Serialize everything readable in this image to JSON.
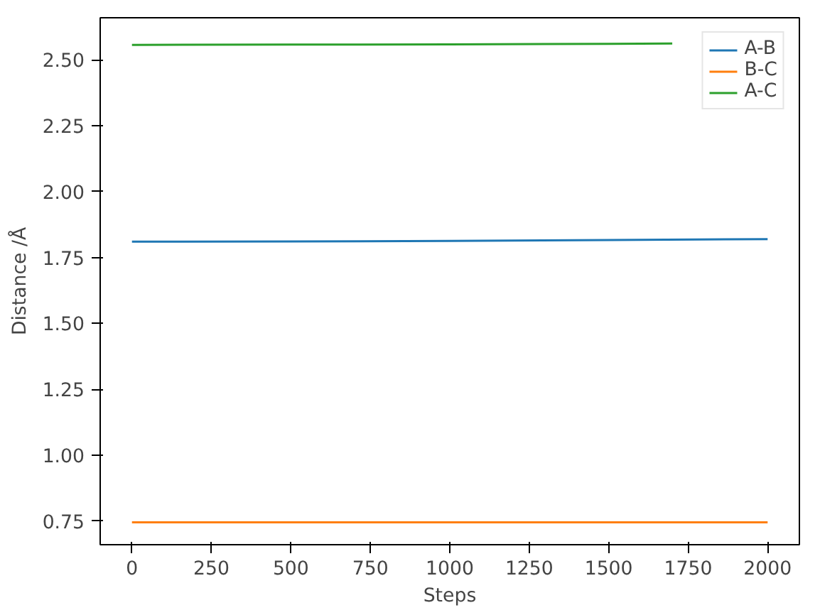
{
  "chart_data": {
    "type": "line",
    "xlabel": "Steps",
    "ylabel": "Distance /Å",
    "x": [
      0,
      500,
      1000,
      1500,
      2000
    ],
    "series": [
      {
        "name": "A-B",
        "color": "#1f77b4",
        "values": [
          1.81,
          1.811,
          1.813,
          1.816,
          1.82
        ]
      },
      {
        "name": "B-C",
        "color": "#ff7f0e",
        "values": [
          0.745,
          0.745,
          0.745,
          0.745,
          0.745
        ]
      },
      {
        "name": "A-C",
        "color": "#2ca02c",
        "x": [
          0,
          500,
          1000,
          1500,
          1700
        ],
        "values": [
          2.557,
          2.558,
          2.559,
          2.561,
          2.562
        ]
      }
    ],
    "xlim": [
      -100,
      2100
    ],
    "xticks": [
      0,
      250,
      500,
      750,
      1000,
      1250,
      1500,
      1750,
      2000
    ],
    "ylim": [
      0.66,
      2.66
    ],
    "yticks": [
      {
        "value": 0.75,
        "label": "0.75"
      },
      {
        "value": 1.0,
        "label": "1.00"
      },
      {
        "value": 1.25,
        "label": "1.25"
      },
      {
        "value": 1.5,
        "label": "1.50"
      },
      {
        "value": 1.75,
        "label": "1.75"
      },
      {
        "value": 2.0,
        "label": "2.00"
      },
      {
        "value": 2.25,
        "label": "2.25"
      },
      {
        "value": 2.5,
        "label": "2.50"
      }
    ],
    "grid": false,
    "legend": "top right",
    "line_style": "solid"
  }
}
